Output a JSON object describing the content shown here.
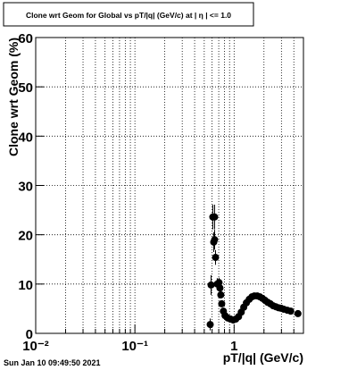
{
  "chart_data": {
    "type": "scatter",
    "title": "Clone wrt Geom for Global vs pT/|q| (GeV/c) at | η | <= 1.0",
    "x_label": "pT/|q| (GeV/c)",
    "y_label": "Clone wrt Geom (%)",
    "timestamp": "Sun Jan 10 09:49:50 2021",
    "log_x": true,
    "grid": true,
    "color": "#000000",
    "xlim": [
      0.01,
      5
    ],
    "ylim": [
      0,
      60
    ],
    "xticks": [
      {
        "value": 0.01,
        "label": "10⁻²"
      },
      {
        "value": 0.1,
        "label": "10⁻¹"
      },
      1
    ],
    "yticks": [
      0,
      10,
      20,
      30,
      40,
      50,
      60
    ],
    "x": [
      0.574,
      0.586,
      0.61,
      0.623,
      0.636,
      0.636,
      0.65,
      0.676,
      0.705,
      0.72,
      0.735,
      0.75,
      0.78,
      0.81,
      0.866,
      0.92,
      0.98,
      1.04,
      1.11,
      1.18,
      1.25,
      1.33,
      1.42,
      1.51,
      1.6,
      1.71,
      1.82,
      1.93,
      2.05,
      2.18,
      2.32,
      2.47,
      2.63,
      2.8,
      2.97,
      3.16,
      3.43,
      3.72,
      4.4
    ],
    "values": [
      1.8,
      9.8,
      23.6,
      18.5,
      23.6,
      19,
      15.4,
      10,
      10.3,
      9.2,
      7.8,
      6,
      4.5,
      3.6,
      3.1,
      2.9,
      2.7,
      2.9,
      3.4,
      4.3,
      5.3,
      6.2,
      6.9,
      7.4,
      7.6,
      7.6,
      7.4,
      7.1,
      6.7,
      6.3,
      6,
      5.6,
      5.4,
      5.2,
      5.1,
      4.9,
      4.7,
      4.5,
      4
    ],
    "errors": [
      1.2,
      2,
      2.5,
      2,
      2.5,
      2,
      1.5,
      1.2,
      1,
      0.8,
      0.7,
      0.6,
      0.5,
      0.4,
      0.3,
      0.3,
      0.3,
      0.3,
      0.3,
      0.3,
      0.3,
      0.3,
      0.3,
      0.3,
      0.3,
      0.3,
      0.3,
      0.3,
      0.3,
      0.3,
      0.3,
      0.3,
      0.3,
      0.3,
      0.3,
      0.3,
      0.3,
      0.3,
      0.3
    ]
  }
}
